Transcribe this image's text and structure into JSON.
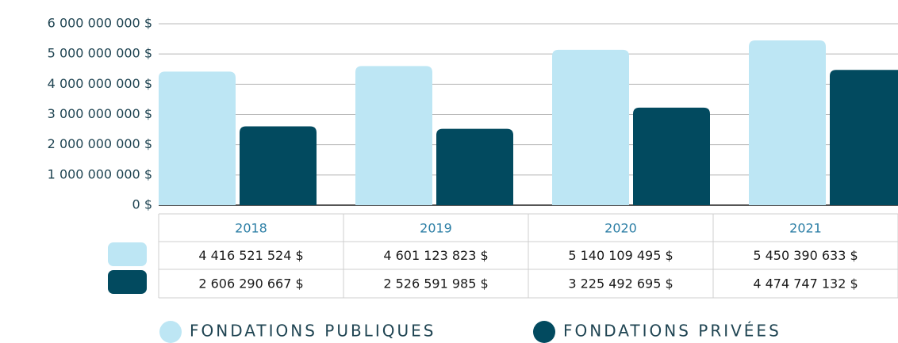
{
  "chart_data": {
    "type": "bar",
    "categories": [
      "2018",
      "2019",
      "2020",
      "2021"
    ],
    "series": [
      {
        "name": "FONDATIONS PUBLIQUES",
        "color": "#bde6f4",
        "values": [
          4416521524,
          4601123823,
          5140109495,
          5450390633
        ],
        "value_labels": [
          "4 416 521 524 $",
          "4 601 123 823 $",
          "5 140 109 495 $",
          "5 450 390 633 $"
        ]
      },
      {
        "name": "FONDATIONS PRIVÉES",
        "color": "#024a5f",
        "values": [
          2606290667,
          2526591985,
          3225492695,
          4474747132
        ],
        "value_labels": [
          "2 606 290 667 $",
          "2 526 591 985 $",
          "3 225 492 695 $",
          "4 474 747 132 $"
        ]
      }
    ],
    "ylim": [
      0,
      6000000000
    ],
    "yticks": [
      {
        "value": 0,
        "label": "0 $"
      },
      {
        "value": 1000000000,
        "label": "1 000 000 000 $"
      },
      {
        "value": 2000000000,
        "label": "2 000 000 000 $"
      },
      {
        "value": 3000000000,
        "label": "3 000 000 000 $"
      },
      {
        "value": 4000000000,
        "label": "4 000 000 000 $"
      },
      {
        "value": 5000000000,
        "label": "5 000 000 000 $"
      },
      {
        "value": 6000000000,
        "label": "6 000 000 000 $"
      }
    ],
    "grid": true,
    "legend": "bottom"
  }
}
